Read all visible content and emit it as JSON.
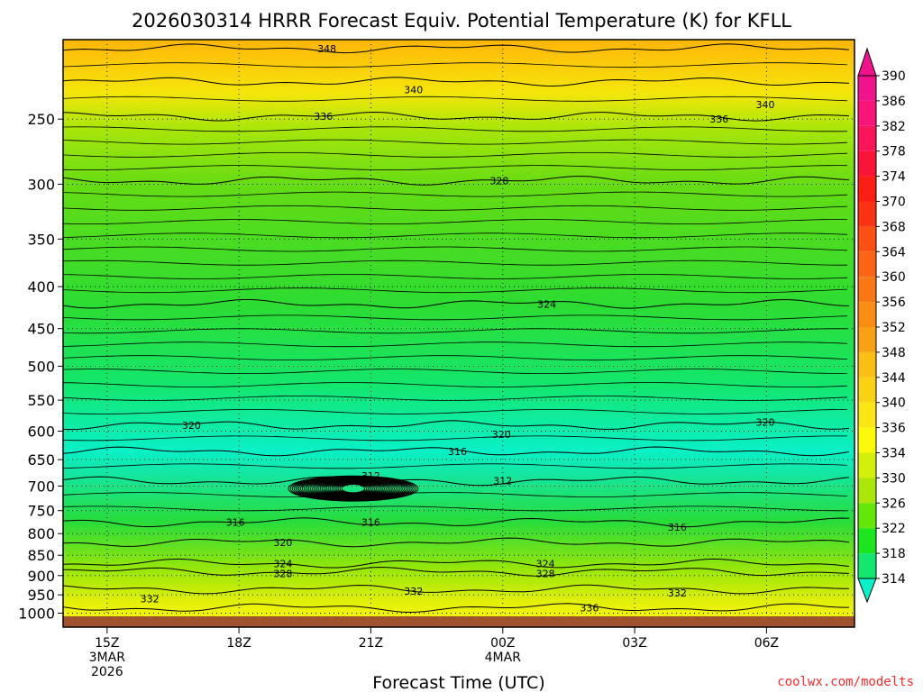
{
  "page": {
    "credit": "coolwx.com/modelts"
  },
  "chart_data": {
    "type": "heatmap",
    "title": "2026030314 HRRR Forecast Equiv. Potential Temperature (K) for KFLL",
    "xlabel": "Forecast Time (UTC)",
    "ylabel": "",
    "x_ticks": [
      {
        "hour": 15,
        "lines": [
          "15Z",
          "3MAR",
          "2026"
        ]
      },
      {
        "hour": 18,
        "lines": [
          "18Z"
        ]
      },
      {
        "hour": 21,
        "lines": [
          "21Z"
        ]
      },
      {
        "hour": 24,
        "lines": [
          "00Z",
          "4MAR"
        ]
      },
      {
        "hour": 27,
        "lines": [
          "03Z"
        ]
      },
      {
        "hour": 30,
        "lines": [
          "06Z"
        ]
      }
    ],
    "xlim_hours": [
      14,
      32
    ],
    "y_scale": "log-pressure",
    "y_unit": "hPa",
    "ylim": [
      1040,
      200
    ],
    "y_ticks": [
      250,
      300,
      350,
      400,
      450,
      500,
      550,
      600,
      650,
      700,
      750,
      800,
      850,
      900,
      950,
      1000
    ],
    "colorbar": {
      "labels": [
        "390",
        "386",
        "382",
        "378",
        "374",
        "370",
        "368",
        "364",
        "360",
        "356",
        "352",
        "348",
        "344",
        "340",
        "336",
        "334",
        "330",
        "326",
        "322",
        "318",
        "314"
      ],
      "colors": [
        "#f0148c",
        "#f81478",
        "#fa145a",
        "#fa1437",
        "#fa1e14",
        "#fa3214",
        "#fa5014",
        "#fa6414",
        "#fa7814",
        "#fa8c14",
        "#faa014",
        "#fabe14",
        "#fad214",
        "#fae614",
        "#fafa0a",
        "#d2f00a",
        "#aae60a",
        "#64e60a",
        "#1ee61e",
        "#14e66e",
        "#0af0c8"
      ]
    },
    "contour_levels": [
      {
        "value": 348,
        "p": 205
      },
      {
        "value": 340,
        "p": 225
      },
      {
        "value": 336,
        "p": 248
      },
      {
        "value": 328,
        "p": 297
      },
      {
        "value": 324,
        "p": 420
      },
      {
        "value": 320,
        "p": 590
      },
      {
        "value": 316,
        "p": 635
      },
      {
        "value": 312,
        "p": 690
      },
      {
        "value": 316,
        "p": 775
      },
      {
        "value": 320,
        "p": 820
      },
      {
        "value": 324,
        "p": 870
      },
      {
        "value": 328,
        "p": 890
      },
      {
        "value": 332,
        "p": 935
      },
      {
        "value": 336,
        "p": 985
      }
    ],
    "contour_labels": [
      {
        "text": "348",
        "hour": 20.0,
        "p": 205
      },
      {
        "text": "340",
        "hour": 21.97,
        "p": 230
      },
      {
        "text": "340",
        "hour": 29.97,
        "p": 240
      },
      {
        "text": "336",
        "hour": 19.92,
        "p": 248
      },
      {
        "text": "336",
        "hour": 28.92,
        "p": 250
      },
      {
        "text": "328",
        "hour": 23.92,
        "p": 297
      },
      {
        "text": "324",
        "hour": 25.0,
        "p": 420
      },
      {
        "text": "320",
        "hour": 16.92,
        "p": 590
      },
      {
        "text": "320",
        "hour": 23.97,
        "p": 605
      },
      {
        "text": "320",
        "hour": 29.97,
        "p": 585
      },
      {
        "text": "316",
        "hour": 22.97,
        "p": 635
      },
      {
        "text": "312",
        "hour": 21.0,
        "p": 680
      },
      {
        "text": "312",
        "hour": 24.0,
        "p": 690
      },
      {
        "text": "316",
        "hour": 17.92,
        "p": 775
      },
      {
        "text": "316",
        "hour": 21.0,
        "p": 775
      },
      {
        "text": "316",
        "hour": 27.97,
        "p": 785
      },
      {
        "text": "320",
        "hour": 19.0,
        "p": 820
      },
      {
        "text": "324",
        "hour": 19.0,
        "p": 870
      },
      {
        "text": "324",
        "hour": 24.97,
        "p": 870
      },
      {
        "text": "328",
        "hour": 19.0,
        "p": 895
      },
      {
        "text": "328",
        "hour": 24.97,
        "p": 895
      },
      {
        "text": "332",
        "hour": 15.97,
        "p": 960
      },
      {
        "text": "332",
        "hour": 21.97,
        "p": 940
      },
      {
        "text": "332",
        "hour": 27.97,
        "p": 945
      },
      {
        "text": "336",
        "hour": 25.97,
        "p": 985
      }
    ],
    "surface_color": "#a0522d"
  }
}
